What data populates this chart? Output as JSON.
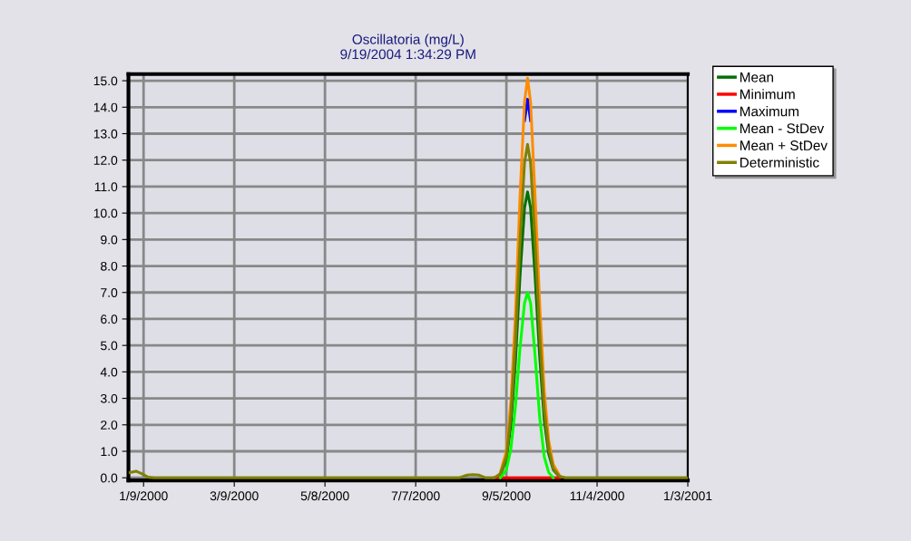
{
  "chart_data": {
    "type": "line",
    "title": "Oscillatoria (mg/L)",
    "subtitle": "9/19/2004 1:34:29 PM",
    "x": [
      "1999-12-31",
      "2000-01-04",
      "2000-01-08",
      "2000-01-12",
      "2000-01-16",
      "2000-08-05",
      "2000-08-10",
      "2000-08-14",
      "2000-08-18",
      "2000-08-22",
      "2000-08-28",
      "2000-09-01",
      "2000-09-05",
      "2000-09-08",
      "2000-09-11",
      "2000-09-14",
      "2000-09-17",
      "2000-09-19",
      "2000-09-21",
      "2000-09-24",
      "2000-09-27",
      "2000-09-30",
      "2000-10-03",
      "2000-10-06",
      "2000-10-10",
      "2000-10-14",
      "2001-01-03"
    ],
    "series": [
      {
        "name": "Mean",
        "color": "#007000",
        "values": [
          null,
          null,
          null,
          null,
          null,
          null,
          null,
          null,
          null,
          null,
          null,
          0.1,
          0.7,
          2.0,
          4.4,
          7.6,
          10.2,
          10.8,
          10.2,
          7.6,
          4.6,
          2.2,
          0.9,
          0.3,
          0.05,
          null,
          null
        ]
      },
      {
        "name": "Minimum",
        "color": "#ff0000",
        "values": [
          null,
          null,
          null,
          null,
          null,
          null,
          null,
          null,
          null,
          null,
          0,
          0,
          0,
          0,
          0,
          0,
          0,
          0,
          0,
          0,
          0,
          0,
          0,
          0,
          0,
          null,
          null
        ]
      },
      {
        "name": "Maximum",
        "color": "#0000ff",
        "values": [
          null,
          null,
          null,
          null,
          null,
          null,
          null,
          null,
          null,
          null,
          null,
          null,
          null,
          null,
          null,
          null,
          13.5,
          14.3,
          13.5,
          null,
          null,
          null,
          null,
          null,
          null,
          null,
          null
        ]
      },
      {
        "name": "Mean - StDev",
        "color": "#00ff00",
        "values": [
          null,
          null,
          null,
          null,
          null,
          null,
          null,
          null,
          null,
          null,
          null,
          0,
          0.3,
          1.1,
          2.7,
          4.9,
          6.6,
          7.0,
          6.6,
          4.6,
          2.3,
          0.8,
          0.2,
          0,
          null,
          null,
          null
        ]
      },
      {
        "name": "Mean + StDev",
        "color": "#ff8c00",
        "values": [
          null,
          null,
          null,
          null,
          null,
          null,
          null,
          null,
          null,
          null,
          null,
          0.2,
          1.0,
          2.9,
          6.2,
          10.6,
          14.2,
          15.1,
          14.2,
          10.6,
          6.6,
          3.3,
          1.4,
          0.5,
          0.1,
          null,
          null
        ]
      },
      {
        "name": "Deterministic",
        "color": "#808000",
        "values": [
          0.2,
          0.25,
          0.15,
          0.02,
          0,
          0,
          0.1,
          0.12,
          0.1,
          0,
          0,
          0.15,
          0.8,
          2.4,
          5.2,
          8.9,
          11.9,
          12.6,
          11.9,
          8.9,
          5.4,
          2.6,
          1.1,
          0.35,
          0.06,
          0,
          0
        ]
      }
    ],
    "xlim": [
      "1999-12-30",
      "2001-01-03"
    ],
    "xticks": [
      {
        "value": "2000-01-09",
        "label": "1/9/2000"
      },
      {
        "value": "2000-03-09",
        "label": "3/9/2000"
      },
      {
        "value": "2000-05-08",
        "label": "5/8/2000"
      },
      {
        "value": "2000-07-07",
        "label": "7/7/2000"
      },
      {
        "value": "2000-09-05",
        "label": "9/5/2000"
      },
      {
        "value": "2000-11-04",
        "label": "11/4/2000"
      },
      {
        "value": "2001-01-03",
        "label": "1/3/2001"
      }
    ],
    "ylim": [
      -0.1,
      15.25
    ],
    "yticks": [
      {
        "value": 0,
        "label": "0.0"
      },
      {
        "value": 1,
        "label": "1.0"
      },
      {
        "value": 2,
        "label": "2.0"
      },
      {
        "value": 3,
        "label": "3.0"
      },
      {
        "value": 4,
        "label": "4.0"
      },
      {
        "value": 5,
        "label": "5.0"
      },
      {
        "value": 6,
        "label": "6.0"
      },
      {
        "value": 7,
        "label": "7.0"
      },
      {
        "value": 8,
        "label": "8.0"
      },
      {
        "value": 9,
        "label": "9.0"
      },
      {
        "value": 10,
        "label": "10.0"
      },
      {
        "value": 11,
        "label": "11.0"
      },
      {
        "value": 12,
        "label": "12.0"
      },
      {
        "value": 13,
        "label": "13.0"
      },
      {
        "value": 14,
        "label": "14.0"
      },
      {
        "value": 15,
        "label": "15.0"
      }
    ],
    "grid": true,
    "legend": "top right",
    "line_style": "solid",
    "marker": "none"
  }
}
